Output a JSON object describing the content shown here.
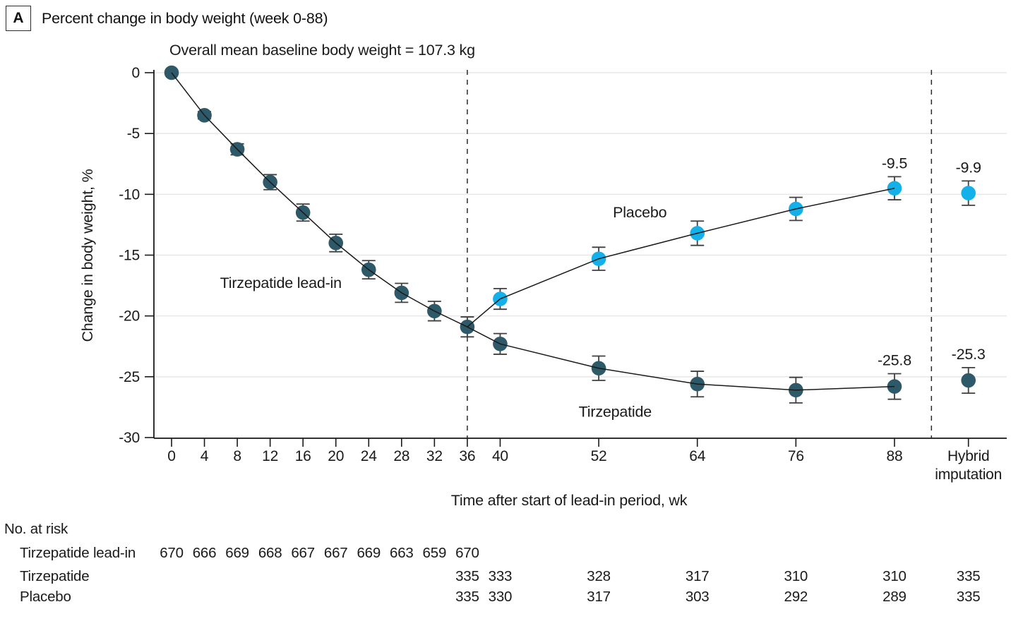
{
  "header": {
    "panel_label": "A",
    "title": "Percent change in body weight (week 0-88)"
  },
  "chart_data": {
    "type": "line",
    "annotation": "Overall mean baseline body weight = 107.3 kg",
    "xlabel": "Time after start of lead-in period, wk",
    "ylabel": "Change in body weight, %",
    "ylim": [
      -30,
      0
    ],
    "yticks": [
      0,
      -5,
      -10,
      -15,
      -20,
      -25,
      -30
    ],
    "xticks": [
      0,
      4,
      8,
      12,
      16,
      20,
      24,
      28,
      32,
      36,
      40,
      52,
      64,
      76,
      88
    ],
    "hybrid_tick": {
      "week": 97,
      "label_lines": [
        "Hybrid",
        "imputation"
      ]
    },
    "dashed_lines_weeks": [
      36,
      92.5
    ],
    "grid": true,
    "colors": {
      "tirzepatide": "#2e5968",
      "placebo": "#14b0ea",
      "error_bar": "#3f3f3f",
      "line": "#1a1a1a",
      "grid": "#e7e7e7",
      "axis": "#1a1a1a"
    },
    "series": [
      {
        "name": "Tirzepatide lead-in",
        "color": "tirzepatide",
        "x": [
          0,
          4,
          8,
          12,
          16,
          20,
          24,
          28,
          32,
          36
        ],
        "y": [
          0,
          -3.5,
          -6.3,
          -9.0,
          -11.5,
          -14.0,
          -16.2,
          -18.1,
          -19.6,
          -20.9
        ],
        "err": [
          0,
          0.3,
          0.45,
          0.62,
          0.7,
          0.72,
          0.75,
          0.78,
          0.8,
          0.82
        ],
        "marker_from_index": 0,
        "label": {
          "text": "Tirzepatide lead-in",
          "week": 13.3,
          "value": -17.7
        }
      },
      {
        "name": "Placebo",
        "color": "placebo",
        "x": [
          36,
          40,
          52,
          64,
          76,
          88
        ],
        "y": [
          -20.9,
          -18.6,
          -15.3,
          -13.2,
          -11.2,
          -9.5
        ],
        "err": [
          null,
          0.85,
          0.95,
          1.0,
          0.95,
          0.95
        ],
        "marker_from_index": 1,
        "end_label": "-9.5",
        "hybrid": {
          "week": 97,
          "y": -9.9,
          "err": 1.0,
          "label": "-9.9"
        },
        "label": {
          "text": "Placebo",
          "week": 57,
          "value": -11.9
        }
      },
      {
        "name": "Tirzepatide",
        "color": "tirzepatide",
        "x": [
          36,
          40,
          52,
          64,
          76,
          88
        ],
        "y": [
          -20.9,
          -22.3,
          -24.3,
          -25.6,
          -26.1,
          -25.8
        ],
        "err": [
          null,
          0.85,
          1.0,
          1.05,
          1.05,
          1.05
        ],
        "marker_from_index": 1,
        "end_label": "-25.8",
        "hybrid": {
          "week": 97,
          "y": -25.3,
          "err": 1.05,
          "label": "-25.3"
        },
        "label": {
          "text": "Tirzepatide",
          "week": 54,
          "value": -28.3
        }
      }
    ],
    "no_at_risk": {
      "header": "No. at risk",
      "rows": [
        {
          "label": "Tirzepatide lead-in",
          "weeks": [
            0,
            4,
            8,
            12,
            16,
            20,
            24,
            28,
            32,
            36
          ],
          "values": [
            "670",
            "666",
            "669",
            "668",
            "667",
            "667",
            "669",
            "663",
            "659",
            "670"
          ]
        },
        {
          "label": "Tirzepatide",
          "weeks": [
            36,
            40,
            52,
            64,
            76,
            88,
            97
          ],
          "values": [
            "335",
            "333",
            "328",
            "317",
            "310",
            "310",
            "335"
          ]
        },
        {
          "label": "Placebo",
          "weeks": [
            36,
            40,
            52,
            64,
            76,
            88,
            97
          ],
          "values": [
            "335",
            "330",
            "317",
            "303",
            "292",
            "289",
            "335"
          ]
        }
      ]
    }
  }
}
